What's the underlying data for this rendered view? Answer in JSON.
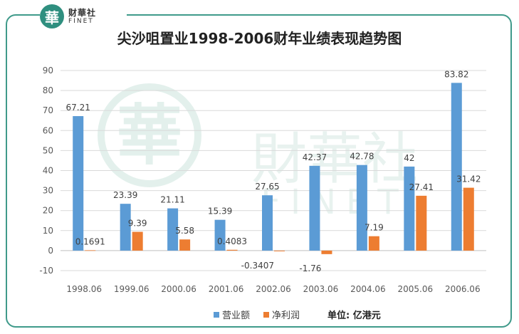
{
  "brand": {
    "seal_char": "華",
    "name_cn": "财華社",
    "name_en": "FINET"
  },
  "watermark": {
    "char": "華",
    "cn": "財華社",
    "en": "FINET"
  },
  "colors": {
    "revenue": "#5b9bd5",
    "profit": "#ed7d31",
    "frame": "#3f9a8a",
    "grid": "#d9d9d9",
    "watermark": "#dfeeea"
  },
  "chart_data": {
    "type": "bar",
    "title": "尖沙咀置业1998-2006财年业绩表现趋势图",
    "categories": [
      "1998.06",
      "1999.06",
      "2000.06",
      "2001.06",
      "2002.06",
      "2003.06",
      "2004.06",
      "2005.06",
      "2006.06"
    ],
    "series": [
      {
        "name": "营业额",
        "values": [
          67.21,
          23.39,
          21.11,
          15.39,
          27.65,
          42.37,
          42.78,
          42,
          83.82
        ],
        "labels": [
          "67.21",
          "23.39",
          "21.11",
          "15.39",
          "27.65",
          "42.37",
          "42.78",
          "42",
          "83.82"
        ]
      },
      {
        "name": "净利润",
        "values": [
          0.1691,
          9.39,
          5.58,
          0.4083,
          -0.3407,
          -1.76,
          7.19,
          27.41,
          31.42
        ],
        "labels": [
          "0.1691",
          "9.39",
          "5.58",
          "0.4083",
          "-0.3407",
          "-1.76",
          "7.19",
          "27.41",
          "31.42"
        ]
      }
    ],
    "ylim": [
      -10,
      90
    ],
    "yticks": [
      -10,
      0,
      10,
      20,
      30,
      40,
      50,
      60,
      70,
      80,
      90
    ],
    "grid": true,
    "legend_position": "bottom",
    "unit_note": "单位: 亿港元",
    "xlabel": "",
    "ylabel": ""
  }
}
